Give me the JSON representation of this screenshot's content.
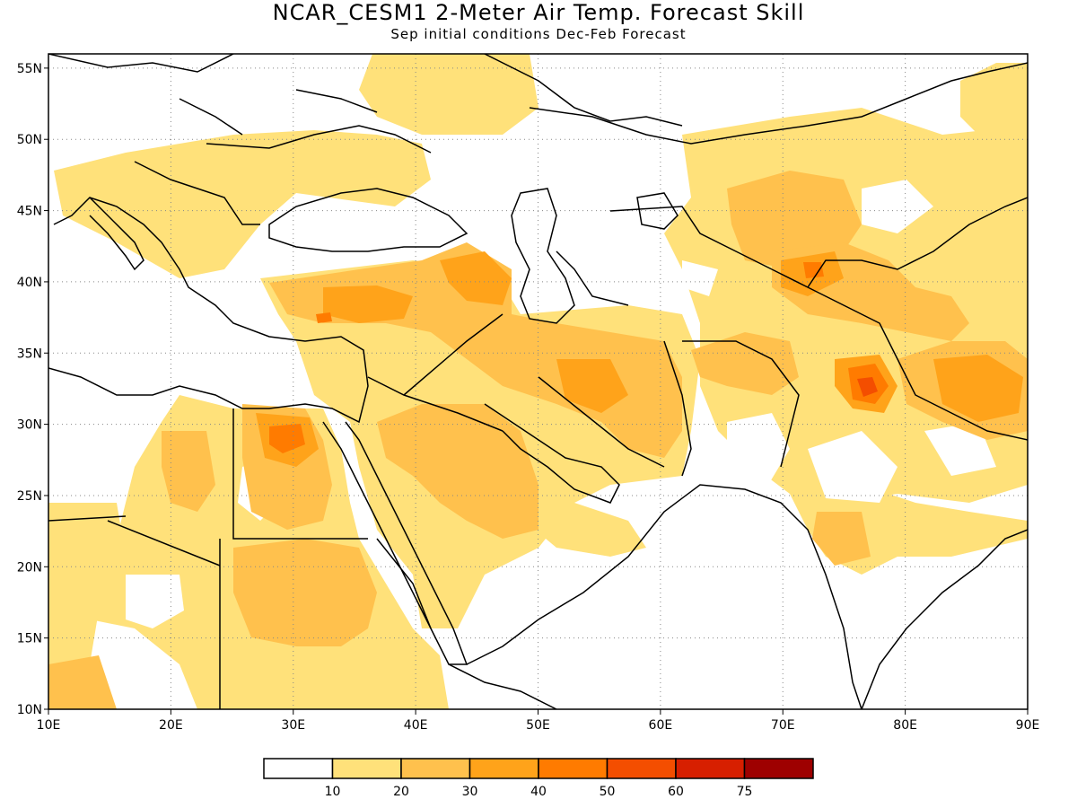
{
  "title": "NCAR_CESM1 2-Meter Air Temp. Forecast Skill",
  "subtitle": "Sep initial conditions  Dec-Feb Forecast",
  "map": {
    "lon_range": [
      10,
      90
    ],
    "lat_range": [
      10,
      56
    ],
    "lon_labels": [
      "10E",
      "20E",
      "30E",
      "40E",
      "50E",
      "60E",
      "70E",
      "80E",
      "90E"
    ],
    "lat_labels": [
      "10N",
      "15N",
      "20N",
      "25N",
      "30N",
      "35N",
      "40N",
      "45N",
      "50N",
      "55N"
    ],
    "grid": "dotted"
  },
  "colorbar": {
    "labels": [
      "10",
      "20",
      "30",
      "40",
      "50",
      "60",
      "75"
    ],
    "colors": [
      "#ffffff",
      "#ffe17a",
      "#ffc14d",
      "#ffa31a",
      "#ff7b00",
      "#f44e00",
      "#d71f00",
      "#9e0000"
    ]
  },
  "chart_data": {
    "type": "heatmap",
    "title": "NCAR_CESM1 2-Meter Air Temp. Forecast Skill",
    "subtitle": "Sep initial conditions  Dec-Feb Forecast",
    "xlabel": "",
    "ylabel": "",
    "xlim": [
      10,
      90
    ],
    "ylim": [
      10,
      56
    ],
    "levels": [
      10,
      20,
      30,
      40,
      50,
      60,
      75
    ]
  }
}
